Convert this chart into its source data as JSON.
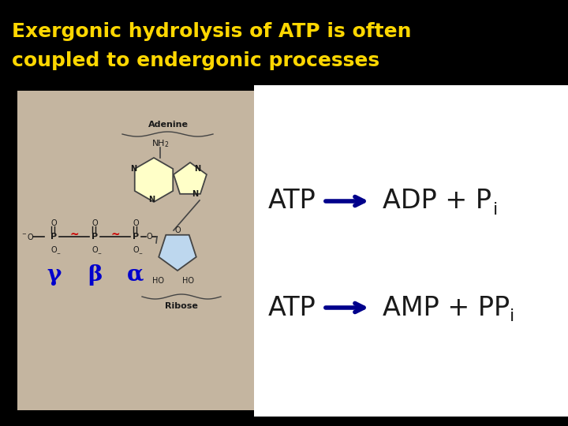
{
  "title_line1": "Exergonic hydrolysis of ATP is often",
  "title_line2": "coupled to endergonic processes",
  "title_color": "#FFD700",
  "title_bg_color": "#000000",
  "title_fontsize": 18,
  "reaction1_left": "ATP",
  "reaction1_right": "ADP + P",
  "reaction1_sub": "i",
  "reaction2_left": "ATP",
  "reaction2_right": "AMP + PP",
  "reaction2_sub": "i",
  "arrow_color": "#00008B",
  "text_color": "#1a1a1a",
  "reaction_fontsize": 24,
  "sub_fontsize": 16,
  "diagram_bg": "#C4B5A0",
  "adenine_ring_color": "#FFFFC8",
  "ribose_color": "#BDD7EE",
  "greek_color": "#0000CD",
  "phosphate_red": "#CC0000",
  "white": "#FFFFFF"
}
